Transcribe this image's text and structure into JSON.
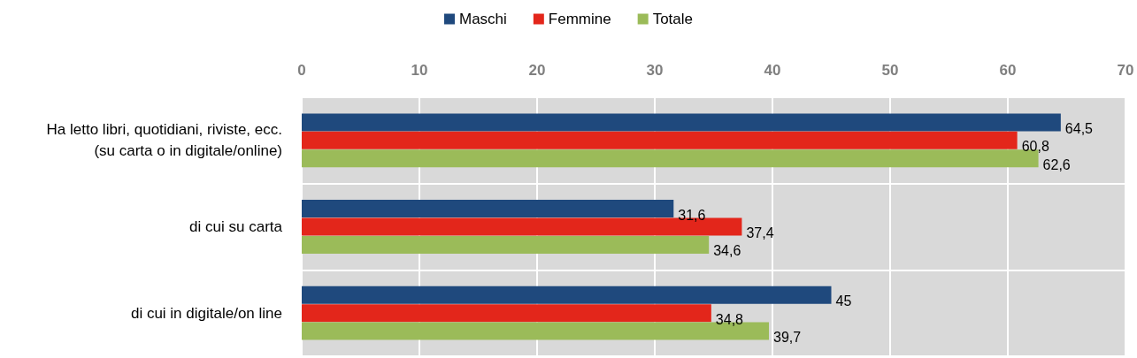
{
  "chart_data": {
    "type": "bar",
    "orientation": "horizontal",
    "categories": [
      "Ha letto libri, quotidiani, riviste, ecc.\n(su carta o in digitale/online)",
      "di cui su carta",
      "di cui in digitale/on line"
    ],
    "series": [
      {
        "name": "Maschi",
        "color": "#1f497d",
        "values": [
          64.5,
          31.6,
          45
        ],
        "value_labels": [
          "64,5",
          "31,6",
          "45"
        ]
      },
      {
        "name": "Femmine",
        "color": "#e3261b",
        "values": [
          60.8,
          37.4,
          34.8
        ],
        "value_labels": [
          "60,8",
          "37,4",
          "34,8"
        ]
      },
      {
        "name": "Totale",
        "color": "#9bbb59",
        "values": [
          62.6,
          34.6,
          39.7
        ],
        "value_labels": [
          "62,6",
          "34,6",
          "39,7"
        ]
      }
    ],
    "xlim": [
      0,
      70
    ],
    "xticks": [
      0,
      10,
      20,
      30,
      40,
      50,
      60,
      70
    ],
    "grid": true,
    "legend": "top"
  }
}
